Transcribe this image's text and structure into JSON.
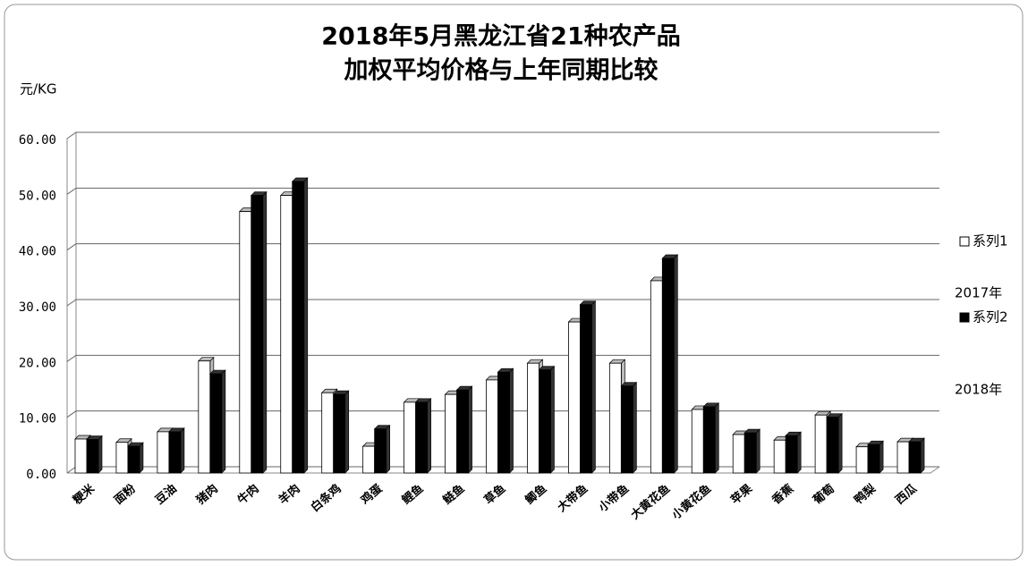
{
  "chart_data": {
    "type": "bar3d",
    "title": [
      "2018年5月黑龙江省21种农产品",
      "加权平均价格与上年同期比较"
    ],
    "y_label": "元/KG",
    "categories": [
      "粳米",
      "面粉",
      "豆油",
      "猪肉",
      "牛肉",
      "羊肉",
      "白条鸡",
      "鸡蛋",
      "鲤鱼",
      "鲢鱼",
      "草鱼",
      "鲫鱼",
      "大带鱼",
      "小带鱼",
      "大黄花鱼",
      "小黄花鱼",
      "苹果",
      "香蕉",
      "葡萄",
      "鸭梨",
      "西瓜"
    ],
    "series": [
      {
        "name": "系列1",
        "color": "#ffffff",
        "values": [
          6.1,
          5.5,
          7.4,
          20.1,
          46.9,
          49.8,
          14.4,
          4.8,
          12.7,
          14.1,
          16.7,
          19.7,
          27.1,
          19.7,
          34.5,
          11.4,
          6.9,
          5.9,
          10.4,
          4.7,
          5.6
        ]
      },
      {
        "name": "系列2",
        "color": "#000000",
        "values": [
          6.0,
          4.8,
          7.4,
          17.8,
          49.8,
          52.3,
          14.1,
          7.9,
          12.7,
          14.9,
          18.1,
          18.5,
          30.2,
          15.6,
          38.5,
          11.9,
          7.2,
          6.7,
          10.0,
          5.1,
          5.6
        ]
      }
    ],
    "annotations": [
      "2017年",
      "2018年"
    ],
    "ylim": [
      0,
      60
    ],
    "yticks": [
      {
        "value": 0,
        "label": "0.00"
      },
      {
        "value": 10,
        "label": "10.00"
      },
      {
        "value": 20,
        "label": "20.00"
      },
      {
        "value": 30,
        "label": "30.00"
      },
      {
        "value": 40,
        "label": "40.00"
      },
      {
        "value": 50,
        "label": "50.00"
      },
      {
        "value": 60,
        "label": "60.00"
      }
    ],
    "grid": true,
    "legend": "right"
  }
}
